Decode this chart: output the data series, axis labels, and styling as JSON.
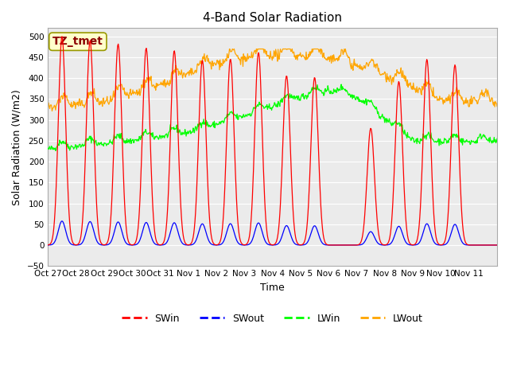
{
  "title": "4-Band Solar Radiation",
  "ylabel": "Solar Radiation (W/m2)",
  "xlabel": "Time",
  "annotation_text": "TZ_tmet",
  "annotation_color": "#8B0000",
  "annotation_bg": "#FFFFCC",
  "annotation_border": "#999900",
  "ylim": [
    -50,
    520
  ],
  "yticks": [
    -50,
    0,
    50,
    100,
    150,
    200,
    250,
    300,
    350,
    400,
    450,
    500
  ],
  "legend_labels": [
    "SWin",
    "SWout",
    "LWin",
    "LWout"
  ],
  "colors": [
    "red",
    "blue",
    "#00ff00",
    "orange"
  ],
  "xtick_labels": [
    "Oct 27",
    "Oct 28",
    "Oct 29",
    "Oct 30",
    "Oct 31",
    "Nov 1",
    "Nov 2",
    "Nov 3",
    "Nov 4",
    "Nov 5",
    "Nov 6",
    "Nov 7",
    "Nov 8",
    "Nov 9",
    "Nov 10",
    "Nov 11"
  ],
  "n_days": 16,
  "sw_peaks": [
    500,
    490,
    482,
    472,
    466,
    443,
    446,
    462,
    406,
    402,
    0,
    280,
    392,
    445,
    432,
    0
  ],
  "plot_bg": "#ebebeb",
  "grid_color": "white",
  "title_fontsize": 11,
  "label_fontsize": 9,
  "tick_fontsize": 7.5,
  "legend_fontsize": 9,
  "lwin_ctrl_x": [
    0,
    3,
    5,
    7,
    9,
    10,
    11,
    13,
    15
  ],
  "lwin_ctrl_y": [
    230,
    250,
    270,
    310,
    355,
    370,
    355,
    250,
    248
  ],
  "lwout_ctrl_x": [
    0,
    2,
    4,
    6,
    8,
    10,
    12,
    14,
    15
  ],
  "lwout_ctrl_y": [
    330,
    342,
    382,
    436,
    456,
    450,
    408,
    346,
    342
  ]
}
